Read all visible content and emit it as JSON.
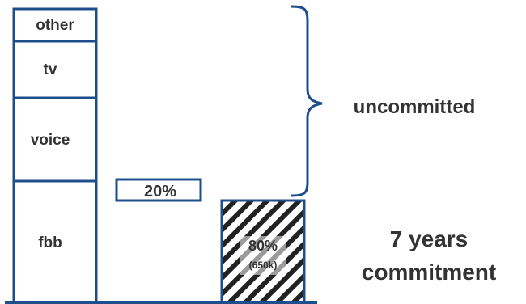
{
  "stack": {
    "segments": [
      {
        "label": "other"
      },
      {
        "label": "tv"
      },
      {
        "label": "voice"
      },
      {
        "label": "fbb"
      }
    ]
  },
  "middle_bar": {
    "label": "20%"
  },
  "hatched_bar": {
    "percent": "80%",
    "sub": "(650k)"
  },
  "annotations": {
    "uncommitted": "uncommitted",
    "commitment_line1": "7 years",
    "commitment_line2": "commitment"
  },
  "colors": {
    "outline": "#1f4e8c",
    "text": "#333333"
  }
}
